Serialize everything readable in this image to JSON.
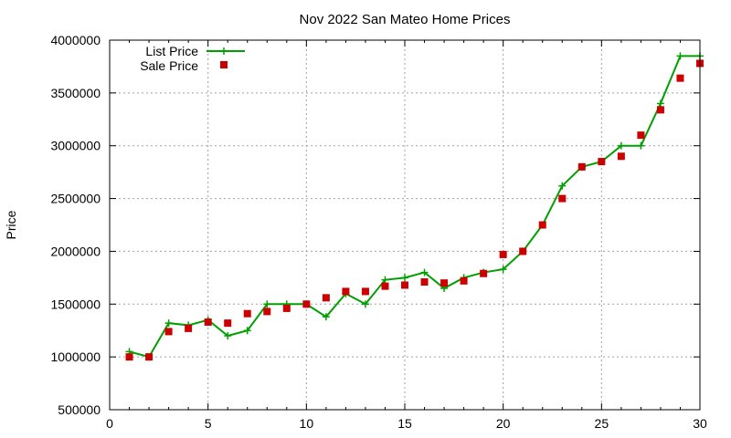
{
  "chart_data": {
    "type": "line",
    "title": "Nov 2022 San Mateo Home Prices",
    "xlabel": "",
    "ylabel": "Price",
    "xlim": [
      0,
      30
    ],
    "ylim": [
      500000,
      4000000
    ],
    "xticks": [
      0,
      5,
      10,
      15,
      20,
      25,
      30
    ],
    "yticks": [
      500000,
      1000000,
      1500000,
      2000000,
      2500000,
      3000000,
      3500000,
      4000000
    ],
    "grid": true,
    "legend_position": "top-left",
    "x": [
      1,
      2,
      3,
      4,
      5,
      6,
      7,
      8,
      9,
      10,
      11,
      12,
      13,
      14,
      15,
      16,
      17,
      18,
      19,
      20,
      21,
      22,
      23,
      24,
      25,
      26,
      27,
      28,
      29,
      30
    ],
    "series": [
      {
        "name": "List Price",
        "style": "line+plus",
        "color": "#00a000",
        "values": [
          1050000,
          1000000,
          1320000,
          1300000,
          1350000,
          1200000,
          1250000,
          1500000,
          1500000,
          1500000,
          1380000,
          1600000,
          1500000,
          1730000,
          1750000,
          1800000,
          1650000,
          1750000,
          1800000,
          1830000,
          2000000,
          2250000,
          2620000,
          2800000,
          2850000,
          3000000,
          3000000,
          3400000,
          3850000,
          3850000
        ]
      },
      {
        "name": "Sale Price",
        "style": "square",
        "color": "#cc0000",
        "values": [
          1000000,
          1000000,
          1240000,
          1270000,
          1330000,
          1320000,
          1410000,
          1430000,
          1460000,
          1500000,
          1560000,
          1620000,
          1620000,
          1670000,
          1680000,
          1710000,
          1700000,
          1720000,
          1790000,
          1970000,
          2000000,
          2250000,
          2500000,
          2800000,
          2850000,
          2900000,
          3100000,
          3340000,
          3640000,
          3780000
        ]
      }
    ]
  }
}
